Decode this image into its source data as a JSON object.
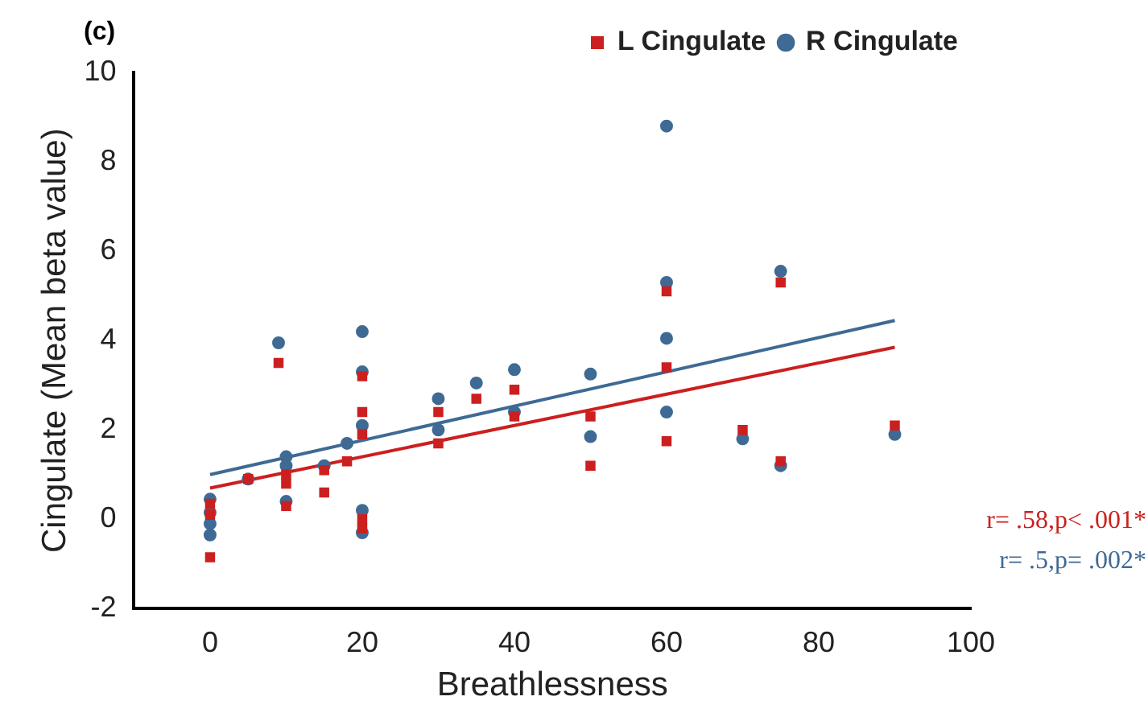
{
  "chart_data": {
    "type": "scatter",
    "title": "(c)",
    "xlabel": "Breathlessness",
    "ylabel": "Cingulate (Mean beta value)",
    "xlim": [
      -10,
      100
    ],
    "xticks": [
      0,
      20,
      40,
      60,
      80,
      100
    ],
    "ylim": [
      -2,
      10
    ],
    "yticks": [
      -2,
      0,
      2,
      4,
      6,
      8,
      10
    ],
    "grid": false,
    "legend": "top right",
    "series": [
      {
        "name": "L Cingulate",
        "color": "#cc1f1f",
        "marker": "square",
        "x": [
          0,
          0,
          0,
          5,
          9,
          10,
          10,
          10,
          15,
          15,
          18,
          20,
          20,
          20,
          20,
          20,
          30,
          30,
          35,
          40,
          40,
          50,
          50,
          60,
          60,
          60,
          70,
          75,
          75,
          90
        ],
        "values": [
          -0.85,
          0.1,
          0.35,
          0.9,
          3.5,
          0.3,
          0.8,
          1.0,
          0.6,
          1.1,
          1.3,
          -0.2,
          0.0,
          1.9,
          2.4,
          3.2,
          1.7,
          2.4,
          2.7,
          2.3,
          2.9,
          1.2,
          2.3,
          1.75,
          3.4,
          5.1,
          2.0,
          1.3,
          5.3,
          2.1
        ]
      },
      {
        "name": "R Cingulate",
        "color": "#3e6a94",
        "marker": "circle",
        "x": [
          0,
          0,
          0,
          0,
          5,
          9,
          10,
          10,
          10,
          15,
          18,
          20,
          20,
          20,
          20,
          20,
          30,
          30,
          35,
          40,
          40,
          50,
          50,
          60,
          60,
          60,
          60,
          70,
          75,
          75,
          90
        ],
        "values": [
          -0.35,
          -0.1,
          0.15,
          0.45,
          0.9,
          3.95,
          0.4,
          1.2,
          1.4,
          1.2,
          1.7,
          -0.3,
          0.2,
          2.1,
          3.3,
          4.2,
          2.0,
          2.7,
          3.05,
          2.4,
          3.35,
          1.85,
          3.25,
          2.4,
          4.05,
          5.3,
          8.8,
          1.8,
          1.2,
          5.55,
          1.9
        ]
      },
      {
        "type": "line",
        "color": "#cc1f1f",
        "marker": "none",
        "x": [
          0,
          90
        ],
        "values": [
          0.7,
          3.85
        ]
      },
      {
        "type": "line",
        "color": "#3e6a94",
        "marker": "none",
        "x": [
          0,
          90
        ],
        "values": [
          1.0,
          4.45
        ]
      }
    ],
    "annotations": [
      "r= .58,p< .001*",
      "r= .5,p= .002*"
    ]
  }
}
